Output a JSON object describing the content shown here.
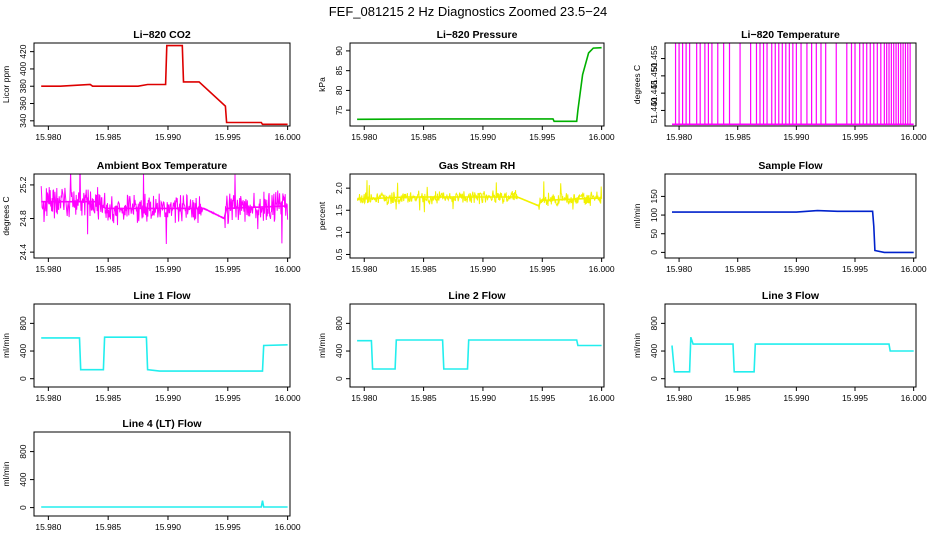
{
  "title": "FEF_081215  2 Hz Diagnostics Zoomed 23.5−24",
  "colors": {
    "red": "#dd0000",
    "green": "#00b000",
    "magenta": "#ff00ff",
    "yellow": "#f2f200",
    "blue": "#0022cc",
    "cyan": "#22eeee"
  },
  "chart_data": [
    {
      "type": "line",
      "title": "Li−820 CO2",
      "ylabel": "Licor ppm",
      "color": "#dd0000",
      "xlim": [
        15.9788,
        16.0002
      ],
      "ylim": [
        334,
        430
      ],
      "xticks": [
        15.98,
        15.985,
        15.99,
        15.995,
        16.0
      ],
      "xtick_labels": [
        "15.980",
        "15.985",
        "15.990",
        "15.995",
        "16.000"
      ],
      "yticks": [
        340,
        360,
        380,
        400,
        420
      ],
      "ytick_labels": [
        "340",
        "360",
        "380",
        "400",
        "420"
      ],
      "x": [
        15.9794,
        15.981,
        15.9835,
        15.9837,
        15.9875,
        15.9883,
        15.9898,
        15.9899,
        15.9912,
        15.9913,
        15.9926,
        15.9948,
        15.9949,
        15.9978,
        15.9979,
        16.0
      ],
      "y": [
        380,
        380,
        382,
        380,
        380,
        382,
        382,
        427,
        427,
        385,
        385,
        357,
        338,
        338,
        336,
        336
      ]
    },
    {
      "type": "line",
      "title": "Li−820 Pressure",
      "ylabel": "kPa",
      "color": "#00b000",
      "xlim": [
        15.9788,
        16.0002
      ],
      "ylim": [
        71,
        92
      ],
      "xticks": [
        15.98,
        15.985,
        15.99,
        15.995,
        16.0
      ],
      "xtick_labels": [
        "15.980",
        "15.985",
        "15.990",
        "15.995",
        "16.000"
      ],
      "yticks": [
        75,
        80,
        85,
        90
      ],
      "ytick_labels": [
        "75",
        "80",
        "85",
        "90"
      ],
      "x": [
        15.9794,
        15.986,
        15.992,
        15.9959,
        15.996,
        15.9979,
        15.998,
        15.9984,
        15.9989,
        15.9993,
        16.0
      ],
      "y": [
        72.7,
        72.8,
        72.8,
        72.8,
        72.2,
        72.2,
        75,
        84,
        89.5,
        90.7,
        90.8
      ]
    },
    {
      "type": "line",
      "title": "Li−820 Temperature",
      "ylabel": "degrees C",
      "color": "#ff00ff",
      "xlim": [
        15.9788,
        16.0002
      ],
      "ylim": [
        51.4355,
        51.4595
      ],
      "xticks": [
        15.98,
        15.985,
        15.99,
        15.995,
        16.0
      ],
      "xtick_labels": [
        "15.980",
        "15.985",
        "15.990",
        "15.995",
        "16.000"
      ],
      "yticks": [
        51.44,
        51.445,
        51.45,
        51.455
      ],
      "ytick_labels": [
        "51.440",
        "51.445",
        "51.450",
        "51.455"
      ],
      "x": [
        15.9794,
        16.0
      ],
      "y": [
        51.436,
        51.436
      ],
      "spikes_x": [
        15.9797,
        15.98,
        15.9803,
        15.9806,
        15.9809,
        15.9815,
        15.9818,
        15.9822,
        15.9825,
        15.9828,
        15.9833,
        15.9838,
        15.9843,
        15.9852,
        15.9861,
        15.9866,
        15.9869,
        15.9872,
        15.9875,
        15.9879,
        15.9882,
        15.9885,
        15.9888,
        15.9891,
        15.9894,
        15.9897,
        15.99,
        15.9904,
        15.9909,
        15.9913,
        15.9917,
        15.9921,
        15.9925,
        15.9934,
        15.9943,
        15.9947,
        15.995,
        15.9954,
        15.9957,
        15.996,
        15.9963,
        15.9966,
        15.9969,
        15.9972,
        15.9975,
        15.9977,
        15.9979,
        15.9981,
        15.9983,
        15.9985,
        15.9987,
        15.9989,
        15.9991,
        15.9993,
        15.9995,
        15.9997
      ],
      "spike_top": 51.4595
    },
    {
      "type": "line",
      "title": "Ambient Box Temperature",
      "ylabel": "degrees C",
      "color": "#ff00ff",
      "xlim": [
        15.9788,
        16.0002
      ],
      "ylim": [
        24.33,
        25.33
      ],
      "xticks": [
        15.98,
        15.985,
        15.99,
        15.995,
        16.0
      ],
      "xtick_labels": [
        "15.980",
        "15.985",
        "15.990",
        "15.995",
        "16.000"
      ],
      "yticks": [
        24.4,
        24.8,
        25.2
      ],
      "ytick_labels": [
        "24.4",
        "24.8",
        "25.2"
      ],
      "x": [
        15.9794,
        15.984,
        15.9848,
        15.993,
        15.9947,
        15.9949,
        16.0
      ],
      "y": [
        25.0,
        25.0,
        24.92,
        24.92,
        24.8,
        24.92,
        24.95
      ],
      "noise": 0.14
    },
    {
      "type": "line",
      "title": "Gas Stream RH",
      "ylabel": "percent",
      "color": "#f2f200",
      "xlim": [
        15.9788,
        16.0002
      ],
      "ylim": [
        0.42,
        2.32
      ],
      "xticks": [
        15.98,
        15.985,
        15.99,
        15.995,
        16.0
      ],
      "xtick_labels": [
        "15.980",
        "15.985",
        "15.990",
        "15.995",
        "16.000"
      ],
      "yticks": [
        0.5,
        1.0,
        1.5,
        2.0
      ],
      "ytick_labels": [
        "0.5",
        "1.0",
        "1.5",
        "2.0"
      ],
      "x": [
        15.9794,
        15.9835,
        15.9929,
        15.9947,
        15.9949,
        16.0
      ],
      "y": [
        1.75,
        1.8,
        1.8,
        1.6,
        1.72,
        1.78
      ],
      "noise": 0.12
    },
    {
      "type": "line",
      "title": "Sample Flow",
      "ylabel": "ml/min",
      "color": "#0022cc",
      "xlim": [
        15.9788,
        16.0002
      ],
      "ylim": [
        -15,
        210
      ],
      "xticks": [
        15.98,
        15.985,
        15.99,
        15.995,
        16.0
      ],
      "xtick_labels": [
        "15.980",
        "15.985",
        "15.990",
        "15.995",
        "16.000"
      ],
      "yticks": [
        0,
        50,
        100,
        150
      ],
      "ytick_labels": [
        "0",
        "50",
        "100",
        "150"
      ],
      "x": [
        15.9794,
        15.985,
        15.99,
        15.9918,
        15.9935,
        15.9965,
        15.9966,
        15.9967,
        15.9975,
        16.0
      ],
      "y": [
        108,
        108,
        108,
        112,
        110,
        110,
        70,
        5,
        0,
        0
      ]
    },
    {
      "type": "line",
      "title": "Line 1 Flow",
      "ylabel": "ml/min",
      "color": "#22eeee",
      "xlim": [
        15.9788,
        16.0002
      ],
      "ylim": [
        -120,
        1080
      ],
      "xticks": [
        15.98,
        15.985,
        15.99,
        15.995,
        16.0
      ],
      "xtick_labels": [
        "15.980",
        "15.985",
        "15.990",
        "15.995",
        "16.000"
      ],
      "yticks": [
        0,
        400,
        800
      ],
      "ytick_labels": [
        "0",
        "400",
        "800"
      ],
      "x": [
        15.9794,
        15.9826,
        15.9827,
        15.9846,
        15.9847,
        15.9882,
        15.9883,
        15.9893,
        15.9979,
        15.998,
        16.0
      ],
      "y": [
        590,
        590,
        130,
        130,
        600,
        600,
        130,
        110,
        110,
        480,
        490
      ]
    },
    {
      "type": "line",
      "title": "Line 2 Flow",
      "ylabel": "ml/min",
      "color": "#22eeee",
      "xlim": [
        15.9788,
        16.0002
      ],
      "ylim": [
        -120,
        1080
      ],
      "xticks": [
        15.98,
        15.985,
        15.99,
        15.995,
        16.0
      ],
      "xtick_labels": [
        "15.980",
        "15.985",
        "15.990",
        "15.995",
        "16.000"
      ],
      "yticks": [
        0,
        400,
        800
      ],
      "ytick_labels": [
        "0",
        "400",
        "800"
      ],
      "x": [
        15.9794,
        15.9806,
        15.9807,
        15.9826,
        15.9827,
        15.9866,
        15.9867,
        15.9887,
        15.9888,
        15.9929,
        15.9979,
        15.998,
        16.0
      ],
      "y": [
        550,
        550,
        140,
        140,
        560,
        560,
        140,
        140,
        560,
        560,
        560,
        480,
        480
      ]
    },
    {
      "type": "line",
      "title": "Line 3 Flow",
      "ylabel": "ml/min",
      "color": "#22eeee",
      "xlim": [
        15.9788,
        16.0002
      ],
      "ylim": [
        -120,
        1080
      ],
      "xticks": [
        15.98,
        15.985,
        15.99,
        15.995,
        16.0
      ],
      "xtick_labels": [
        "15.980",
        "15.985",
        "15.990",
        "15.995",
        "16.000"
      ],
      "yticks": [
        0,
        400,
        800
      ],
      "ytick_labels": [
        "0",
        "400",
        "800"
      ],
      "x": [
        15.9794,
        15.9796,
        15.9809,
        15.981,
        15.9812,
        15.9846,
        15.9847,
        15.9864,
        15.9865,
        15.9929,
        15.9979,
        15.998,
        16.0
      ],
      "y": [
        480,
        100,
        100,
        600,
        500,
        500,
        100,
        100,
        500,
        500,
        500,
        400,
        400
      ]
    },
    {
      "type": "line",
      "title": "Line 4 (LT) Flow",
      "ylabel": "ml/min",
      "color": "#22eeee",
      "xlim": [
        15.9788,
        16.0002
      ],
      "ylim": [
        -120,
        1080
      ],
      "xticks": [
        15.98,
        15.985,
        15.99,
        15.995,
        16.0
      ],
      "xtick_labels": [
        "15.980",
        "15.985",
        "15.990",
        "15.995",
        "16.000"
      ],
      "yticks": [
        0,
        400,
        800
      ],
      "ytick_labels": [
        "0",
        "400",
        "800"
      ],
      "x": [
        15.9794,
        15.9978,
        15.9979,
        15.998,
        15.9981,
        16.0
      ],
      "y": [
        8,
        8,
        100,
        8,
        8,
        8
      ]
    }
  ]
}
